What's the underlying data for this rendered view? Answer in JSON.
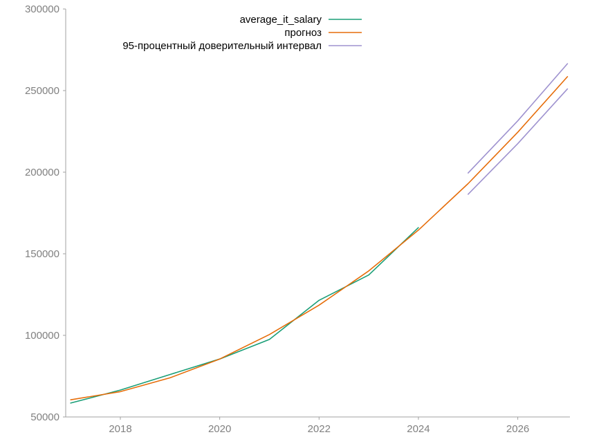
{
  "chart_data": {
    "type": "line",
    "xlim": [
      2016.9,
      2027.05
    ],
    "ylim": [
      50000,
      300000
    ],
    "x_ticks": [
      2018,
      2020,
      2022,
      2024,
      2026
    ],
    "x_tick_labels": [
      "2018",
      "2020",
      "2022",
      "2024",
      "2026"
    ],
    "y_ticks": [
      50000,
      100000,
      150000,
      200000,
      250000,
      300000
    ],
    "y_tick_labels": [
      "50000",
      "100000",
      "150000",
      "200000",
      "250000",
      "300000"
    ],
    "grid": false,
    "legend_position": "top-center",
    "series": [
      {
        "name": "average_it_salary",
        "color": "#1a9e77",
        "x": [
          2017,
          2018,
          2019,
          2020,
          2021,
          2022,
          2023,
          2024
        ],
        "y": [
          58500,
          66500,
          76000,
          85500,
          97500,
          121500,
          137000,
          166000
        ]
      },
      {
        "name": "прогноз",
        "color": "#e66d0a",
        "x": [
          2017,
          2018,
          2019,
          2020,
          2021,
          2022,
          2023,
          2024,
          2025,
          2026,
          2027
        ],
        "y": [
          60500,
          65500,
          74000,
          85500,
          100500,
          118500,
          139500,
          164500,
          193000,
          224500,
          258500
        ]
      },
      {
        "name": "95-процентный доверительный интервал",
        "color": "#9e92cf",
        "segments": [
          {
            "x": [
              2025,
              2026,
              2027
            ],
            "y": [
              199500,
              231500,
              266500
            ]
          },
          {
            "x": [
              2025,
              2026,
              2027
            ],
            "y": [
              186500,
              217500,
              251000
            ]
          }
        ]
      }
    ]
  }
}
